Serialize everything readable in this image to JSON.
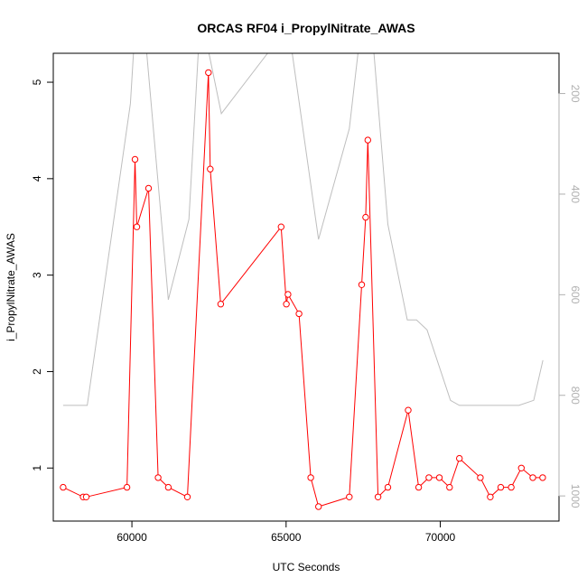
{
  "chart_data": {
    "type": "line",
    "title": "ORCAS RF04 i_PropylNitrate_AWAS",
    "xlabel": "UTC Seconds",
    "ylabel": "i_PropylNitrate_AWAS",
    "xlim": [
      57450,
      73850
    ],
    "ylim": [
      0.45,
      5.3
    ],
    "y2lim": [
      1050,
      120
    ],
    "y2_reversed": true,
    "xticks": [
      "60000",
      "65000",
      "70000"
    ],
    "yticks": [
      "1",
      "2",
      "3",
      "4",
      "5"
    ],
    "y2ticks": [
      "200",
      "400",
      "600",
      "800",
      "1000"
    ],
    "colors": {
      "series": "#ff0000",
      "secondary": "#bebebe",
      "right_axis": "#b0b0b0"
    },
    "series": [
      {
        "x": [
          57770,
          58420,
          58520,
          59840,
          60100,
          60160,
          60540,
          60850,
          61180,
          61800,
          62480,
          62540,
          62880,
          64840,
          65010,
          65060,
          65420,
          65800,
          66050,
          67050,
          67450,
          67580,
          67650,
          67980,
          68300,
          68960,
          69300,
          69630,
          69970,
          70300,
          70620,
          71300,
          71620,
          71960,
          72300,
          72630,
          73000,
          73320
        ],
        "y": [
          0.8,
          0.7,
          0.7,
          0.8,
          4.2,
          3.5,
          3.9,
          0.9,
          0.8,
          0.7,
          5.1,
          4.1,
          2.7,
          3.5,
          2.7,
          2.8,
          2.6,
          0.9,
          0.6,
          0.7,
          2.9,
          3.6,
          4.4,
          0.7,
          0.8,
          1.6,
          0.8,
          0.9,
          0.9,
          0.8,
          1.1,
          0.9,
          0.7,
          0.8,
          0.8,
          1.0,
          0.9,
          0.9
        ]
      }
    ],
    "secondary_series": {
      "x": [
        57770,
        58550,
        59950,
        60050,
        60480,
        61180,
        61850,
        62150,
        62500,
        62900,
        64400,
        64550,
        65200,
        66050,
        67050,
        67330,
        67850,
        68300,
        68930,
        69230,
        69570,
        70330,
        70620,
        71500,
        72550,
        73030,
        73330
      ],
      "y": [
        820,
        820,
        220,
        120,
        120,
        610,
        450,
        120,
        120,
        240,
        120,
        120,
        120,
        490,
        270,
        120,
        120,
        460,
        650,
        650,
        670,
        810,
        820,
        820,
        820,
        810,
        730
      ]
    }
  }
}
